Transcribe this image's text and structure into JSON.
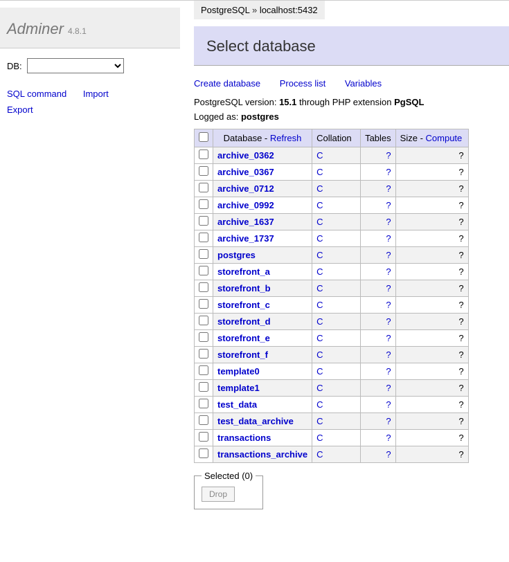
{
  "logo": {
    "name": "Adminer",
    "version": "4.8.1"
  },
  "sidebar": {
    "db_label": "DB:",
    "links": {
      "sql_command": "SQL command",
      "import": "Import",
      "export": "Export"
    }
  },
  "breadcrumb": {
    "driver": "PostgreSQL",
    "sep": " » ",
    "server": "localhost:5432"
  },
  "page_title": "Select database",
  "actions": {
    "create": "Create database",
    "process": "Process list",
    "variables": "Variables"
  },
  "meta": {
    "version_label": "PostgreSQL version: ",
    "version_value": "15.1",
    "via_text": " through PHP extension ",
    "ext": "PgSQL",
    "logged_label": "Logged as: ",
    "logged_user": "postgres"
  },
  "table": {
    "headers": {
      "database": "Database",
      "refresh": "Refresh",
      "collation": "Collation",
      "tables": "Tables",
      "size": "Size",
      "compute": "Compute",
      "dash": " - "
    },
    "rows": [
      {
        "name": "archive_0362",
        "collation": "C",
        "tables": "?",
        "size": "?"
      },
      {
        "name": "archive_0367",
        "collation": "C",
        "tables": "?",
        "size": "?"
      },
      {
        "name": "archive_0712",
        "collation": "C",
        "tables": "?",
        "size": "?"
      },
      {
        "name": "archive_0992",
        "collation": "C",
        "tables": "?",
        "size": "?"
      },
      {
        "name": "archive_1637",
        "collation": "C",
        "tables": "?",
        "size": "?"
      },
      {
        "name": "archive_1737",
        "collation": "C",
        "tables": "?",
        "size": "?"
      },
      {
        "name": "postgres",
        "collation": "C",
        "tables": "?",
        "size": "?"
      },
      {
        "name": "storefront_a",
        "collation": "C",
        "tables": "?",
        "size": "?"
      },
      {
        "name": "storefront_b",
        "collation": "C",
        "tables": "?",
        "size": "?"
      },
      {
        "name": "storefront_c",
        "collation": "C",
        "tables": "?",
        "size": "?"
      },
      {
        "name": "storefront_d",
        "collation": "C",
        "tables": "?",
        "size": "?"
      },
      {
        "name": "storefront_e",
        "collation": "C",
        "tables": "?",
        "size": "?"
      },
      {
        "name": "storefront_f",
        "collation": "C",
        "tables": "?",
        "size": "?"
      },
      {
        "name": "template0",
        "collation": "C",
        "tables": "?",
        "size": "?"
      },
      {
        "name": "template1",
        "collation": "C",
        "tables": "?",
        "size": "?"
      },
      {
        "name": "test_data",
        "collation": "C",
        "tables": "?",
        "size": "?"
      },
      {
        "name": "test_data_archive",
        "collation": "C",
        "tables": "?",
        "size": "?"
      },
      {
        "name": "transactions",
        "collation": "C",
        "tables": "?",
        "size": "?"
      },
      {
        "name": "transactions_archive",
        "collation": "C",
        "tables": "?",
        "size": "?"
      }
    ]
  },
  "footer": {
    "selected_label": "Selected (0)",
    "drop_label": "Drop"
  },
  "colors": {
    "header_bg": "#dcdcf5",
    "sidebar_logo_bg": "#eeeeee",
    "row_alt_bg": "#f2f2f2",
    "border": "#bbbbbb",
    "link": "#0000cc"
  }
}
